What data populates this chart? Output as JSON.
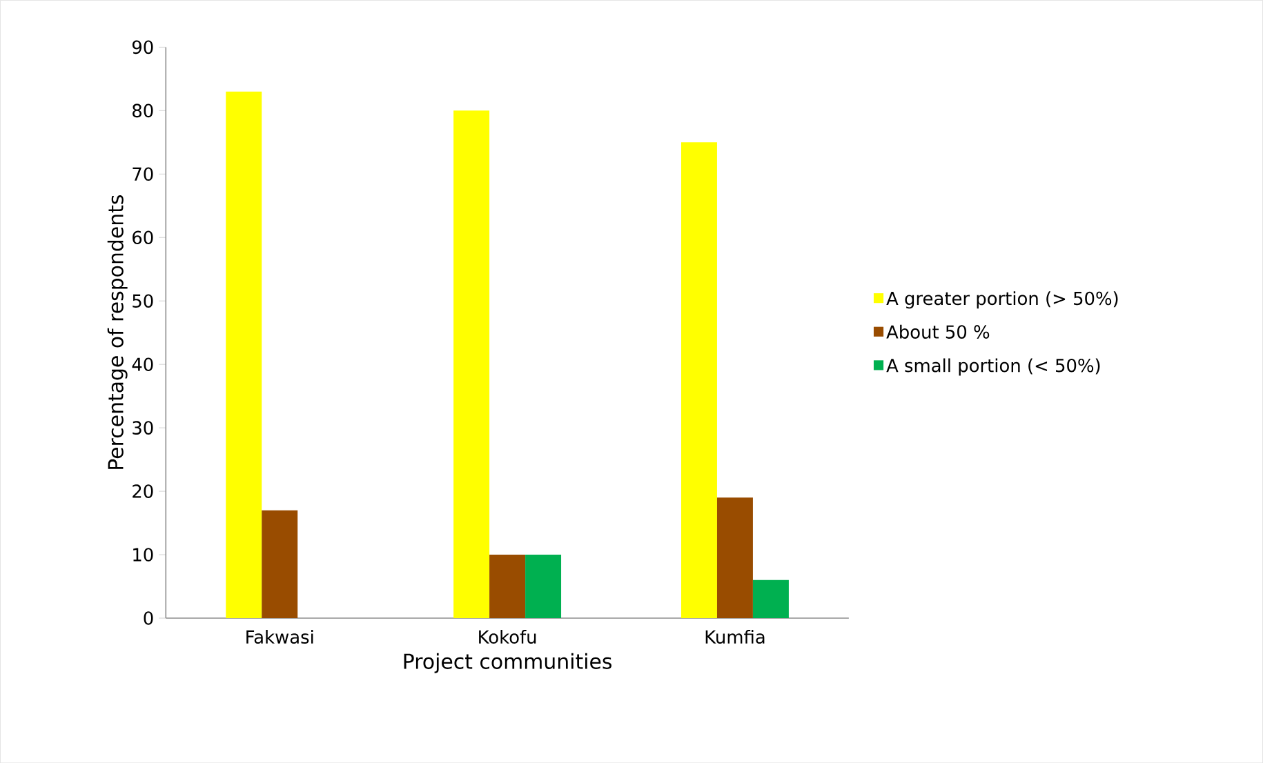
{
  "chart_data": {
    "type": "bar",
    "xlabel": "Project communities",
    "ylabel": "Percentage of  respondents",
    "categories": [
      "Fakwasi",
      "Kokofu",
      "Kumfia"
    ],
    "series": [
      {
        "name": "A greater portion (> 50%)",
        "color": "#ffff00",
        "values": [
          83,
          80,
          75
        ]
      },
      {
        "name": "About 50 %",
        "color": "#994c00",
        "values": [
          17,
          10,
          19
        ]
      },
      {
        "name": "A small portion (< 50%)",
        "color": "#00b050",
        "values": [
          null,
          10,
          6
        ]
      }
    ],
    "ylim": [
      0,
      90
    ],
    "yticks": [
      0,
      10,
      20,
      30,
      40,
      50,
      60,
      70,
      80,
      90
    ],
    "legend": "right",
    "grid": false
  }
}
